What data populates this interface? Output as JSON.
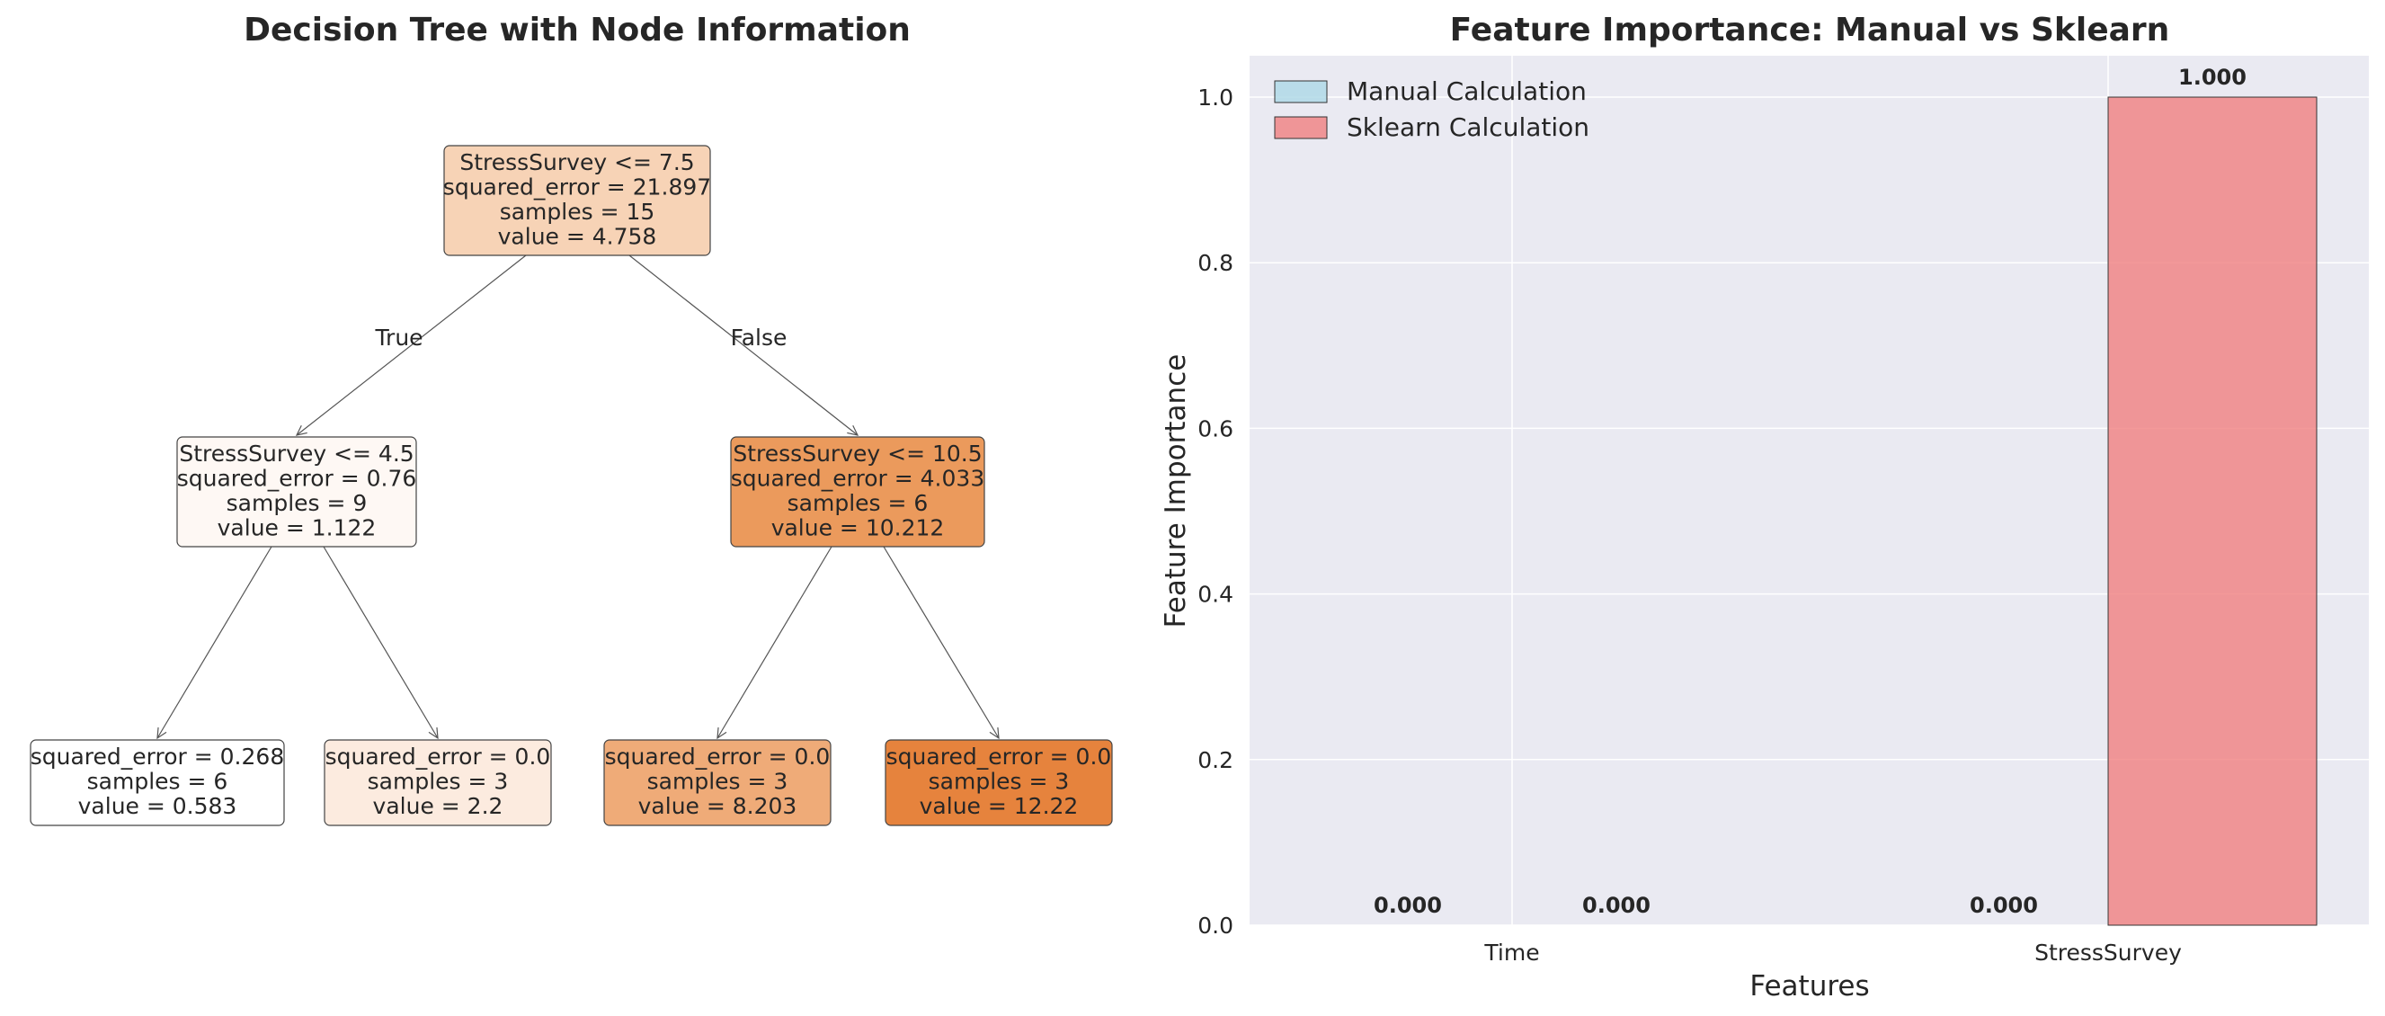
{
  "colors": {
    "plot_bg": "#eaeaf2",
    "grid": "#ffffff",
    "manual": "#add8e6",
    "sklearn": "#f08080",
    "edge": "#555555",
    "node_border": "#444444"
  },
  "tree": {
    "title": "Decision Tree with Node Information",
    "edge_labels": {
      "true": "True",
      "false": "False"
    },
    "nodes": [
      {
        "id": "root",
        "lines": [
          "StressSurvey <= 7.5",
          "squared_error = 21.897",
          "samples = 15",
          "value = 4.758"
        ],
        "fill": "#f7d3b6"
      },
      {
        "id": "left",
        "lines": [
          "StressSurvey <= 4.5",
          "squared_error = 0.76",
          "samples = 9",
          "value = 1.122"
        ],
        "fill": "#fef8f4"
      },
      {
        "id": "right",
        "lines": [
          "StressSurvey <= 10.5",
          "squared_error = 4.033",
          "samples = 6",
          "value = 10.212"
        ],
        "fill": "#eb9a5c"
      },
      {
        "id": "ll",
        "lines": [
          "squared_error = 0.268",
          "samples = 6",
          "value = 0.583"
        ],
        "fill": "#ffffff"
      },
      {
        "id": "lr",
        "lines": [
          "squared_error = 0.0",
          "samples = 3",
          "value = 2.2"
        ],
        "fill": "#fcebdf"
      },
      {
        "id": "rl",
        "lines": [
          "squared_error = 0.0",
          "samples = 3",
          "value = 8.203"
        ],
        "fill": "#efab78"
      },
      {
        "id": "rr",
        "lines": [
          "squared_error = 0.0",
          "samples = 3",
          "value = 12.22"
        ],
        "fill": "#e6833d"
      }
    ]
  },
  "chart_data": {
    "type": "bar",
    "title": "Feature Importance: Manual vs Sklearn",
    "xlabel": "Features",
    "ylabel": "Feature Importance",
    "categories": [
      "Time",
      "StressSurvey"
    ],
    "series": [
      {
        "name": "Manual Calculation",
        "values": [
          0.0,
          0.0
        ]
      },
      {
        "name": "Sklearn Calculation",
        "values": [
          0.0,
          1.0
        ]
      }
    ],
    "value_labels": [
      [
        "0.000",
        "0.000"
      ],
      [
        "0.000",
        "1.000"
      ]
    ],
    "ylim": [
      0,
      1.05
    ],
    "yticks": [
      0.0,
      0.2,
      0.4,
      0.6,
      0.8,
      1.0
    ],
    "ytick_labels": [
      "0.0",
      "0.2",
      "0.4",
      "0.6",
      "0.8",
      "1.0"
    ],
    "grid": true,
    "legend": "top-left"
  }
}
